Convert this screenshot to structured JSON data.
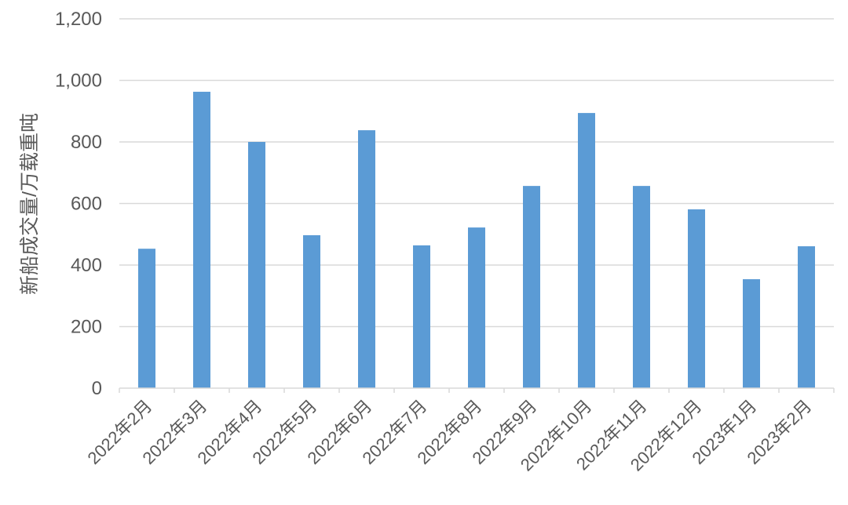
{
  "chart_data": {
    "type": "bar",
    "title": "",
    "xlabel": "",
    "ylabel": "新船成交量/万载重吨",
    "ylim": [
      0,
      1200
    ],
    "yticks": [
      "0",
      "200",
      "400",
      "600",
      "800",
      "1,000",
      "1,200"
    ],
    "ytick_values": [
      0,
      200,
      400,
      600,
      800,
      1000,
      1200
    ],
    "grid": true,
    "legend": "none",
    "bar_color": "#5B9BD5",
    "categories": [
      "2022年2月",
      "2022年3月",
      "2022年4月",
      "2022年5月",
      "2022年6月",
      "2022年7月",
      "2022年8月",
      "2022年9月",
      "2022年10月",
      "2022年11月",
      "2022年12月",
      "2023年1月",
      "2023年2月"
    ],
    "values": [
      453,
      963,
      800,
      497,
      838,
      464,
      522,
      657,
      894,
      657,
      581,
      354,
      461
    ]
  }
}
